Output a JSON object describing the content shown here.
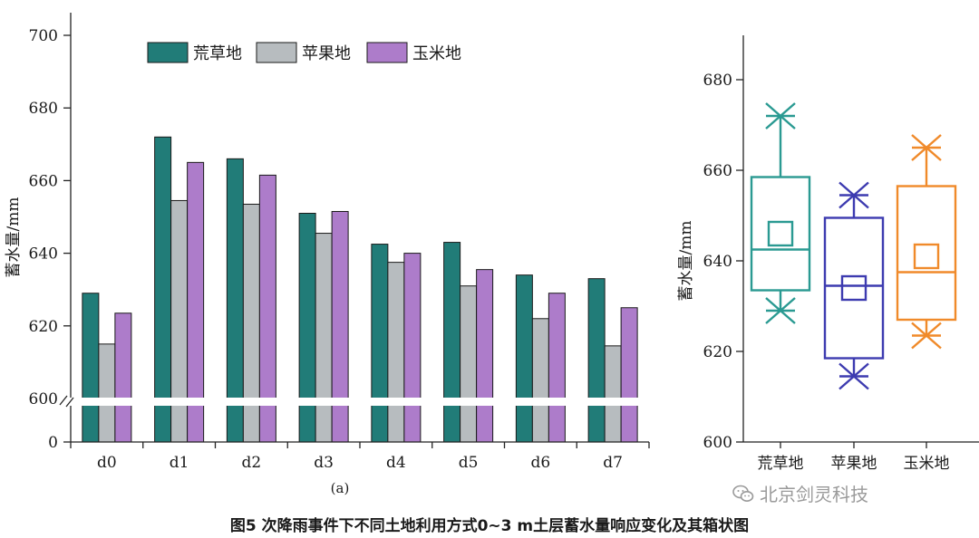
{
  "caption": "图5  次降雨事件下不同土地利用方式0~3 m土层蓄水量响应变化及其箱状图",
  "watermark": {
    "text": "北京剑灵科技",
    "icon": "wechat-icon"
  },
  "chart_data": [
    {
      "type": "bar",
      "panel_label": "(a)",
      "ylabel": "蓄水量/mm",
      "ylim": [
        600,
        700
      ],
      "y_break": true,
      "yticks": [
        "0",
        "600",
        "620",
        "640",
        "660",
        "680",
        "700"
      ],
      "categories": [
        "d0",
        "d1",
        "d2",
        "d3",
        "d4",
        "d5",
        "d6",
        "d7"
      ],
      "series": [
        {
          "name": "荒草地",
          "color": "#217c78",
          "values": [
            629,
            672,
            666,
            651,
            642.5,
            643,
            634,
            633
          ]
        },
        {
          "name": "苹果地",
          "color": "#b7bcbf",
          "values": [
            615,
            654.5,
            653.5,
            645.5,
            637.5,
            631,
            622,
            614.5
          ]
        },
        {
          "name": "玉米地",
          "color": "#ad7cca",
          "values": [
            623.5,
            665,
            661.5,
            651.5,
            640,
            635.5,
            629,
            625
          ]
        }
      ],
      "legend": "top"
    },
    {
      "type": "box",
      "ylabel": "蓄水量/mm",
      "ylim": [
        600,
        690
      ],
      "yticks": [
        "600",
        "620",
        "640",
        "660",
        "680"
      ],
      "categories": [
        "荒草地",
        "苹果地",
        "玉米地"
      ],
      "boxes": [
        {
          "name": "荒草地",
          "color": "#2a9a92",
          "q1": 633.5,
          "median": 642.5,
          "q3": 658.5,
          "mean": 646,
          "whisker_low": 629,
          "whisker_high": 672
        },
        {
          "name": "苹果地",
          "color": "#3d3bb0",
          "q1": 618.5,
          "median": 634.5,
          "q3": 649.5,
          "mean": 634,
          "whisker_low": 614.5,
          "whisker_high": 654.5
        },
        {
          "name": "玉米地",
          "color": "#f08a2a",
          "q1": 627,
          "median": 637.5,
          "q3": 656.5,
          "mean": 641,
          "whisker_low": 623.5,
          "whisker_high": 665
        }
      ]
    }
  ]
}
